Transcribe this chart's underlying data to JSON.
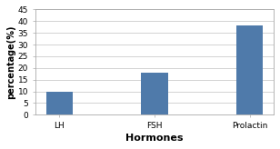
{
  "categories": [
    "LH",
    "FSH",
    "Prolactin"
  ],
  "values": [
    10,
    18,
    38
  ],
  "bar_color": "#4f7aaa",
  "xlabel": "Hormones",
  "ylabel": "percentage(%)",
  "ylim": [
    0,
    45
  ],
  "yticks": [
    0,
    5,
    10,
    15,
    20,
    25,
    30,
    35,
    40,
    45
  ],
  "title": "",
  "bar_width": 0.28,
  "background_color": "#ffffff",
  "plot_bg_color": "#ffffff",
  "grid_color": "#cccccc",
  "xlabel_fontsize": 8,
  "ylabel_fontsize": 7,
  "tick_fontsize": 6.5,
  "spine_color": "#aaaaaa"
}
